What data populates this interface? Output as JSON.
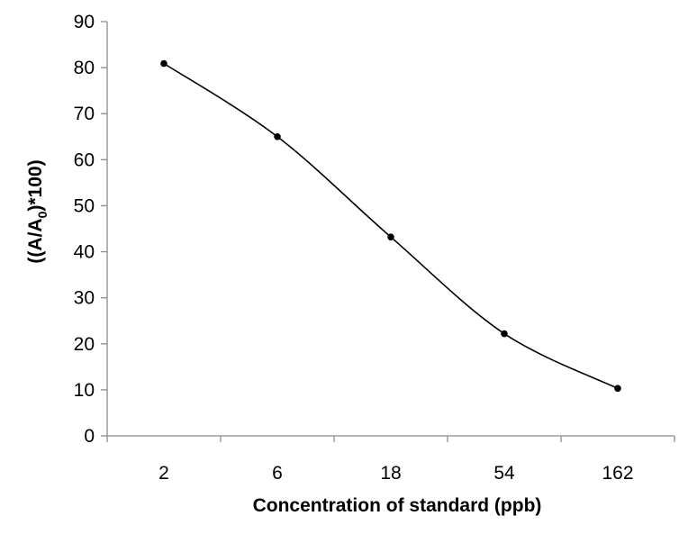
{
  "chart_data": {
    "type": "line",
    "title": "",
    "xlabel": "Concentration of standard (ppb)",
    "ylabel": {
      "prefix": "((A/A",
      "subscript": "0",
      "suffix": ")*100)"
    },
    "categories": [
      "2",
      "6",
      "18",
      "54",
      "162"
    ],
    "series": [
      {
        "name": "",
        "values": [
          80.9,
          65.0,
          43.2,
          22.2,
          10.3
        ]
      }
    ],
    "ylim": [
      0,
      90
    ],
    "yticks": [
      "0",
      "10",
      "20",
      "30",
      "40",
      "50",
      "60",
      "70",
      "80",
      "90"
    ],
    "grid": false,
    "legend": "none",
    "smooth": true,
    "colors": {
      "line": "#000000",
      "marker": "#000000",
      "axis": "#8c8c8c"
    }
  }
}
